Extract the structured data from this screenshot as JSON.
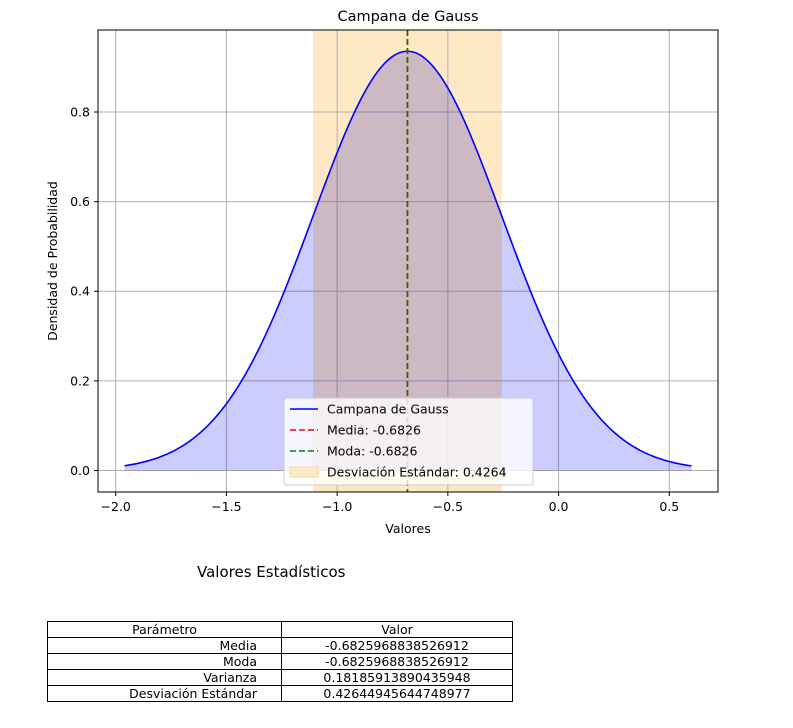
{
  "chart_data": {
    "type": "line",
    "title": "Campana de Gauss",
    "xlabel": "Valores",
    "ylabel": "Densidad de Probabilidad",
    "xlim": [
      -2.08,
      0.72
    ],
    "ylim": [
      -0.048,
      0.983
    ],
    "xticks": [
      -2.0,
      -1.5,
      -1.0,
      -0.5,
      0.0,
      0.5
    ],
    "xtick_labels": [
      "−2.0",
      "−1.5",
      "−1.0",
      "−0.5",
      "0.0",
      "0.5"
    ],
    "yticks": [
      0.0,
      0.2,
      0.4,
      0.6,
      0.8
    ],
    "ytick_labels": [
      "0.0",
      "0.2",
      "0.4",
      "0.6",
      "0.8"
    ],
    "grid": true,
    "curve": {
      "mean": -0.6826,
      "std": 0.4264,
      "x_range": [
        -1.96,
        0.6
      ],
      "color": "#0000ff",
      "fill": "#ccccff"
    },
    "mean_line": {
      "x": -0.6826,
      "color": "#ff0000"
    },
    "mode_line": {
      "x": -0.6826,
      "color": "#008000"
    },
    "std_band": {
      "x_range": [
        -1.109,
        -0.2562
      ],
      "color": "#ffe8c4"
    },
    "legend": {
      "position": "lower center",
      "entries": [
        {
          "label": "Campana de Gauss",
          "style": "line",
          "color": "#0000ff"
        },
        {
          "label": "Media: -0.6826",
          "style": "dashed",
          "color": "#ff0000"
        },
        {
          "label": "Moda: -0.6826",
          "style": "dashed",
          "color": "#008000"
        },
        {
          "label": "Desviación Estándar: 0.4264",
          "style": "patch",
          "color": "#ffe8c4"
        }
      ]
    }
  },
  "stats": {
    "title": "Valores Estadísticos",
    "headers": [
      "Parámetro",
      "Valor"
    ],
    "rows": [
      {
        "param": "Media",
        "value": "-0.6825968838526912"
      },
      {
        "param": "Moda",
        "value": "-0.6825968838526912"
      },
      {
        "param": "Varianza",
        "value": "0.18185913890435948"
      },
      {
        "param": "Desviación Estándar",
        "value": "0.42644945644748977"
      }
    ]
  }
}
